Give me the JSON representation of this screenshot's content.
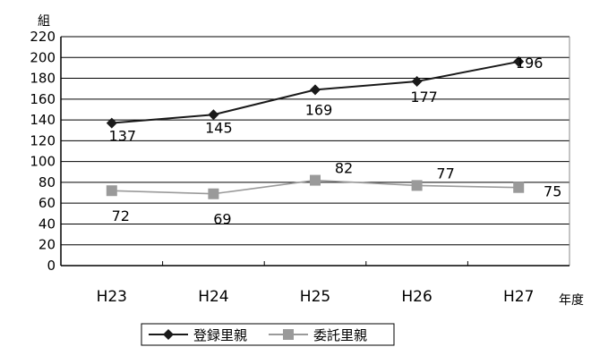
{
  "chart_data": {
    "type": "line",
    "title": "",
    "xlabel": "年度",
    "ylabel": "組",
    "categories": [
      "H23",
      "H24",
      "H25",
      "H26",
      "H27"
    ],
    "ylim": [
      0,
      220
    ],
    "y_ticks": [
      0,
      20,
      40,
      60,
      80,
      100,
      120,
      140,
      160,
      180,
      200,
      220
    ],
    "grid": true,
    "legend_position": "bottom-center",
    "series": [
      {
        "name": "登録里親",
        "values": [
          137,
          145,
          169,
          177,
          196
        ],
        "color": "#1a1a1a",
        "marker": "diamond",
        "labels": [
          "137",
          "145",
          "169",
          "177",
          "196"
        ]
      },
      {
        "name": "委託里親",
        "values": [
          72,
          69,
          82,
          77,
          75
        ],
        "color": "#9a9a9a",
        "marker": "square",
        "labels": [
          "72",
          "69",
          "82",
          "77",
          "75"
        ]
      }
    ]
  }
}
